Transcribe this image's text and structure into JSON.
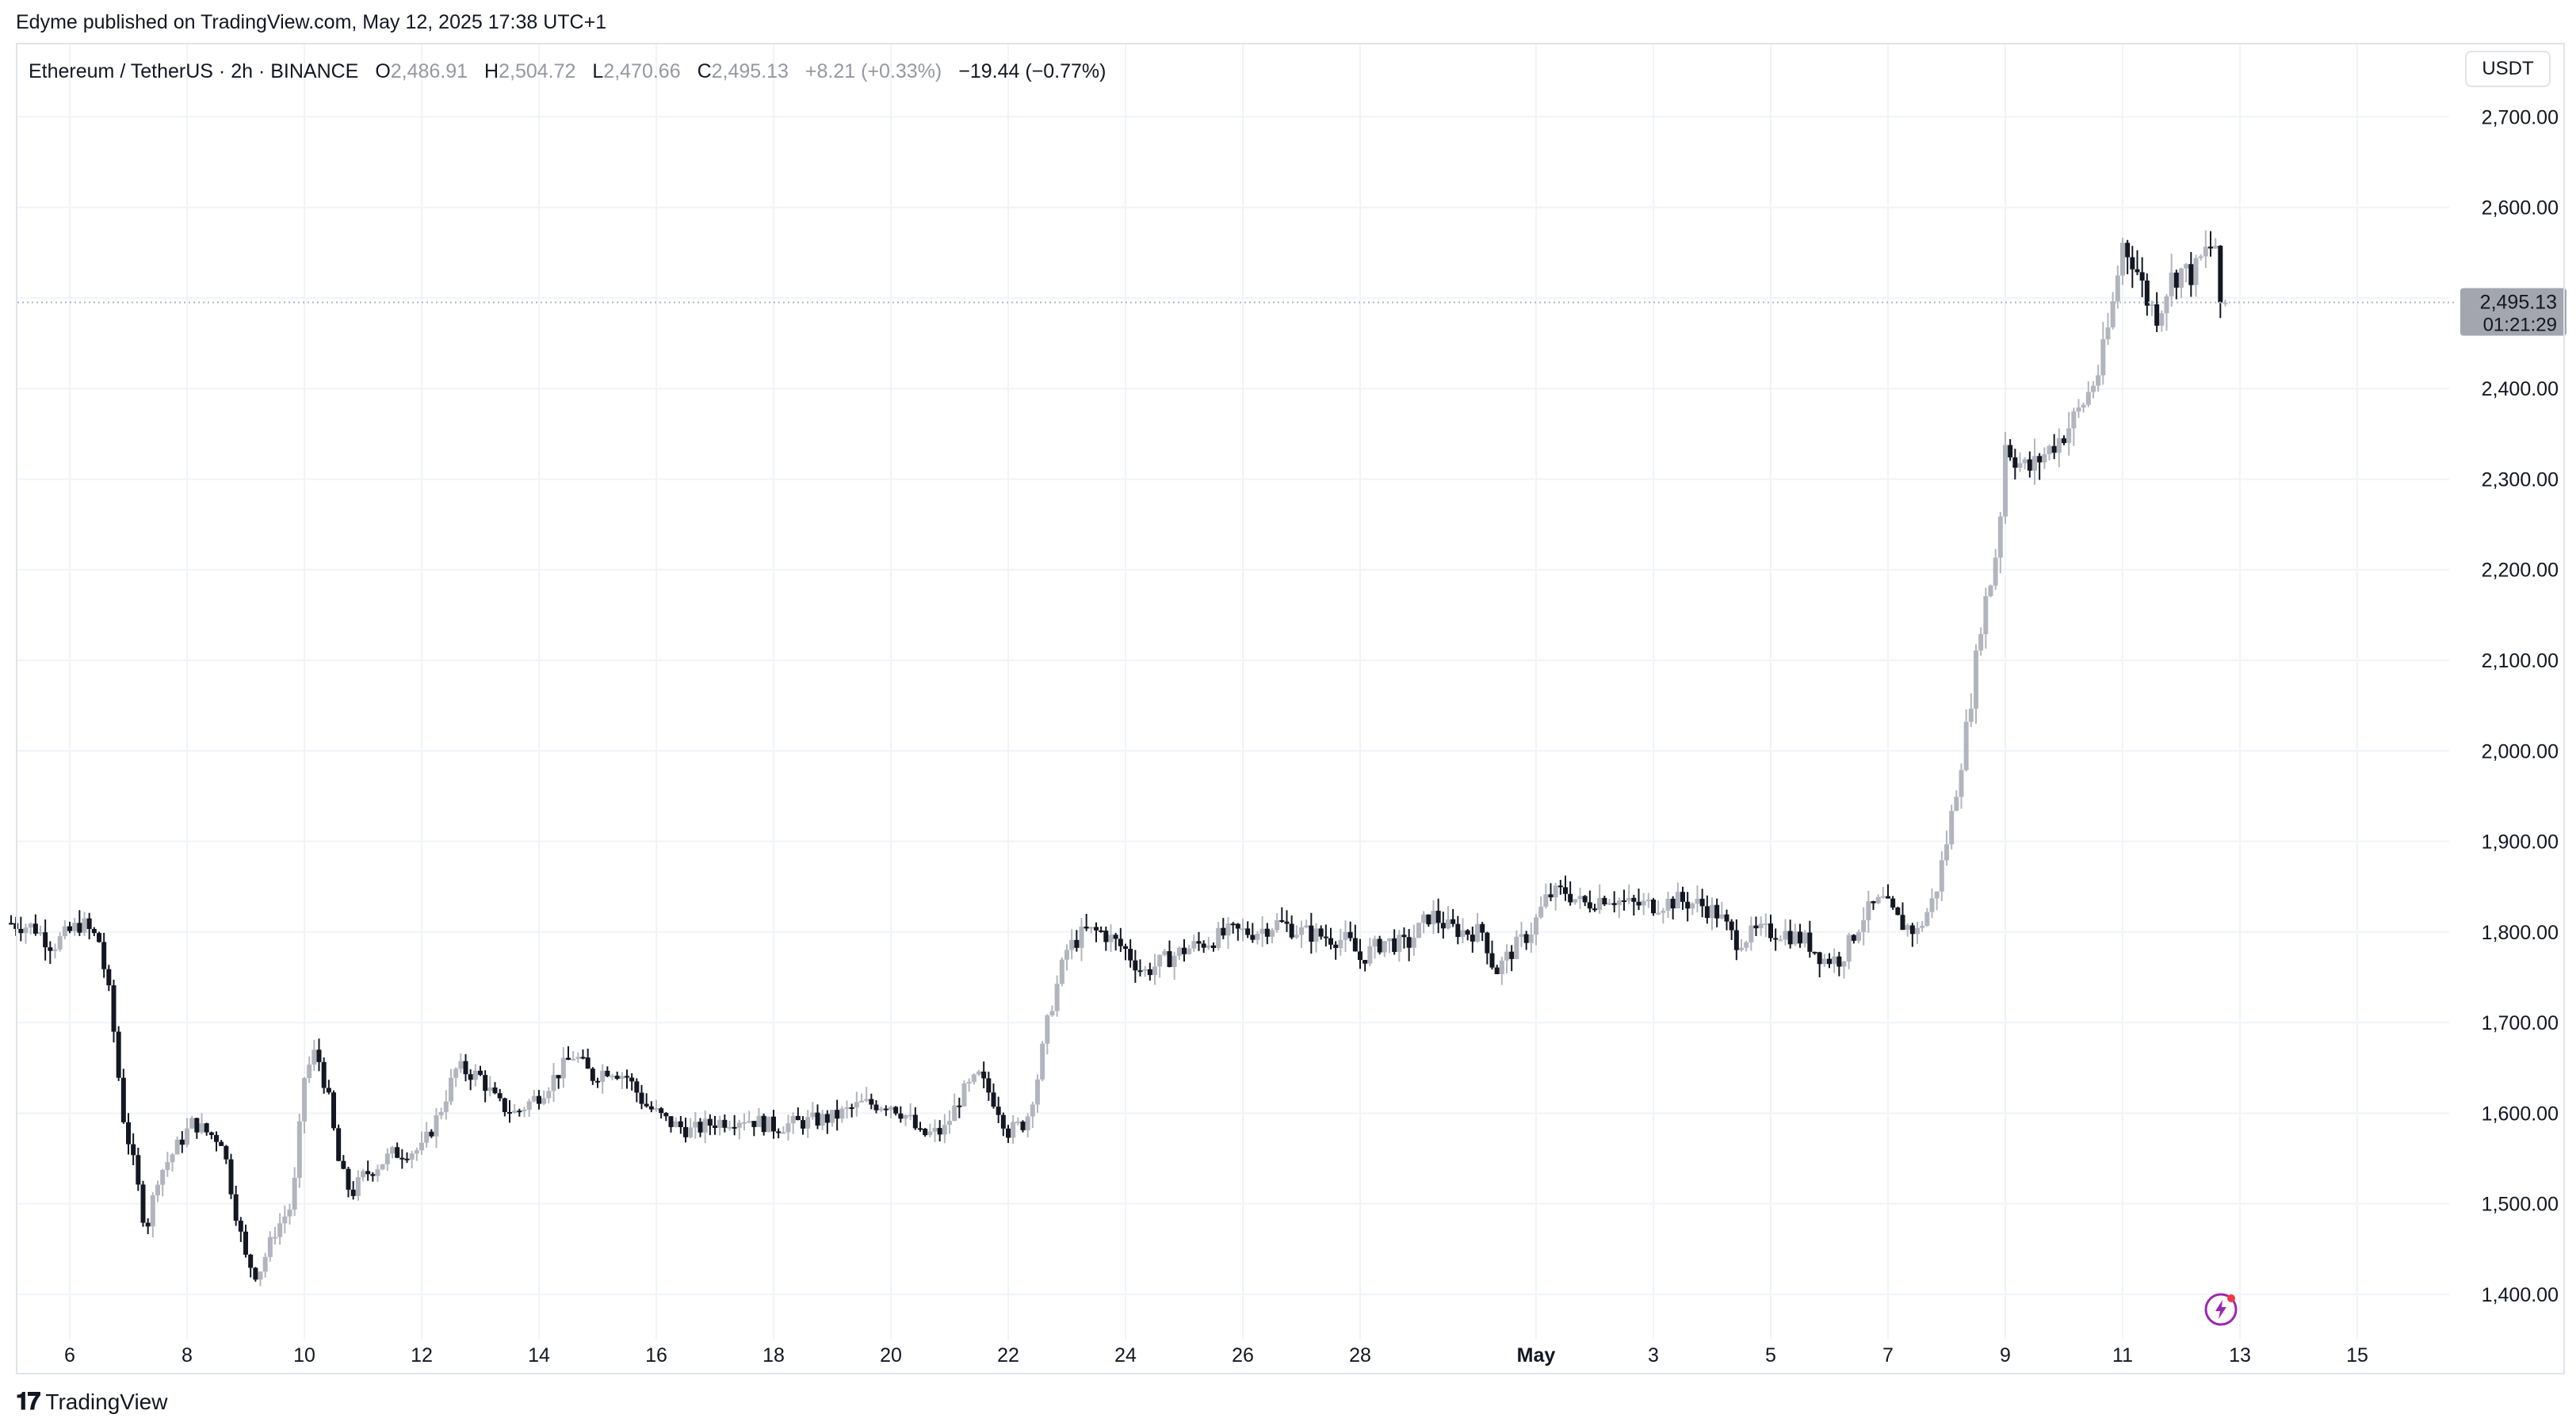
{
  "publication": "Edyme published on TradingView.com, May 12, 2025 17:38 UTC+1",
  "legend": {
    "symbol": "Ethereum / TetherUS · 2h · BINANCE",
    "o_label": "O",
    "o_value": "2,486.91",
    "h_label": "H",
    "h_value": "2,504.72",
    "l_label": "L",
    "l_value": "2,470.66",
    "c_label": "C",
    "c_value": "2,495.13",
    "change": "+8.21 (+0.33%)",
    "change2": "−19.44 (−0.77%)"
  },
  "unit": "USDT",
  "price_tag": {
    "price": "2,495.13",
    "countdown": "01:21:29"
  },
  "footer": {
    "brand": "TradingView"
  },
  "colors": {
    "up": "#b2b5be",
    "down": "#131722",
    "grid": "#f0f3fa",
    "tag": "#a3a6af"
  },
  "chart_data": {
    "type": "candlestick",
    "y_ticks": [
      "1,400.00",
      "1,500.00",
      "1,600.00",
      "1,700.00",
      "1,800.00",
      "1,900.00",
      "2,000.00",
      "2,100.00",
      "2,200.00",
      "2,300.00",
      "2,400.00",
      "2,500.00",
      "2,600.00",
      "2,700.00"
    ],
    "x_ticks": [
      "6",
      "8",
      "10",
      "12",
      "14",
      "16",
      "18",
      "20",
      "22",
      "24",
      "26",
      "28",
      "May",
      "3",
      "5",
      "7",
      "9",
      "11",
      "13",
      "15"
    ],
    "ylim": [
      1350,
      2780
    ],
    "grid": true,
    "last_price": 2495.13,
    "path": [
      [
        5.0,
        1810
      ],
      [
        5.4,
        1805
      ],
      [
        5.7,
        1785
      ],
      [
        6.0,
        1800
      ],
      [
        6.2,
        1810
      ],
      [
        6.5,
        1790
      ],
      [
        6.7,
        1720
      ],
      [
        6.9,
        1600
      ],
      [
        7.1,
        1540
      ],
      [
        7.3,
        1470
      ],
      [
        7.5,
        1530
      ],
      [
        7.8,
        1560
      ],
      [
        8.1,
        1590
      ],
      [
        8.3,
        1580
      ],
      [
        8.6,
        1570
      ],
      [
        8.8,
        1500
      ],
      [
        9.0,
        1440
      ],
      [
        9.2,
        1420
      ],
      [
        9.5,
        1470
      ],
      [
        9.8,
        1500
      ],
      [
        10.0,
        1640
      ],
      [
        10.2,
        1670
      ],
      [
        10.4,
        1620
      ],
      [
        10.6,
        1540
      ],
      [
        10.8,
        1510
      ],
      [
        11.0,
        1530
      ],
      [
        11.5,
        1555
      ],
      [
        12.0,
        1560
      ],
      [
        12.3,
        1600
      ],
      [
        12.6,
        1650
      ],
      [
        13.0,
        1640
      ],
      [
        13.3,
        1610
      ],
      [
        13.6,
        1600
      ],
      [
        14.0,
        1620
      ],
      [
        14.4,
        1650
      ],
      [
        14.6,
        1665
      ],
      [
        14.9,
        1640
      ],
      [
        15.2,
        1650
      ],
      [
        15.5,
        1640
      ],
      [
        15.8,
        1610
      ],
      [
        16.2,
        1590
      ],
      [
        16.6,
        1580
      ],
      [
        17.0,
        1590
      ],
      [
        17.5,
        1595
      ],
      [
        18.0,
        1585
      ],
      [
        18.5,
        1590
      ],
      [
        19.0,
        1595
      ],
      [
        19.5,
        1610
      ],
      [
        20.0,
        1610
      ],
      [
        20.3,
        1595
      ],
      [
        20.5,
        1575
      ],
      [
        20.9,
        1580
      ],
      [
        21.2,
        1620
      ],
      [
        21.5,
        1640
      ],
      [
        21.8,
        1610
      ],
      [
        22.0,
        1580
      ],
      [
        22.3,
        1590
      ],
      [
        22.5,
        1640
      ],
      [
        22.7,
        1710
      ],
      [
        23.0,
        1780
      ],
      [
        23.3,
        1800
      ],
      [
        23.6,
        1800
      ],
      [
        24.0,
        1780
      ],
      [
        24.3,
        1755
      ],
      [
        24.7,
        1770
      ],
      [
        25.0,
        1780
      ],
      [
        25.4,
        1790
      ],
      [
        25.8,
        1800
      ],
      [
        26.2,
        1800
      ],
      [
        26.6,
        1810
      ],
      [
        27.0,
        1800
      ],
      [
        27.4,
        1795
      ],
      [
        27.8,
        1790
      ],
      [
        28.0,
        1770
      ],
      [
        28.4,
        1790
      ],
      [
        28.8,
        1785
      ],
      [
        29.2,
        1820
      ],
      [
        29.5,
        1805
      ],
      [
        29.8,
        1800
      ],
      [
        30.1,
        1800
      ],
      [
        30.3,
        1755
      ],
      [
        30.6,
        1780
      ],
      [
        30.9,
        1800
      ],
      [
        31.2,
        1840
      ],
      [
        31.5,
        1845
      ],
      [
        31.8,
        1830
      ],
      [
        32.2,
        1840
      ],
      [
        32.6,
        1830
      ],
      [
        33.0,
        1830
      ],
      [
        33.4,
        1835
      ],
      [
        33.8,
        1830
      ],
      [
        34.1,
        1820
      ],
      [
        34.4,
        1790
      ],
      [
        34.8,
        1800
      ],
      [
        35.2,
        1800
      ],
      [
        35.6,
        1790
      ],
      [
        35.9,
        1770
      ],
      [
        36.2,
        1770
      ],
      [
        36.6,
        1820
      ],
      [
        36.9,
        1835
      ],
      [
        37.2,
        1810
      ],
      [
        37.5,
        1800
      ],
      [
        37.8,
        1840
      ],
      [
        38.0,
        1900
      ],
      [
        38.2,
        1970
      ],
      [
        38.4,
        2050
      ],
      [
        38.6,
        2150
      ],
      [
        38.8,
        2200
      ],
      [
        38.9,
        2250
      ],
      [
        39.0,
        2340
      ],
      [
        39.2,
        2320
      ],
      [
        39.4,
        2310
      ],
      [
        39.7,
        2330
      ],
      [
        40.0,
        2350
      ],
      [
        40.3,
        2380
      ],
      [
        40.6,
        2420
      ],
      [
        40.8,
        2480
      ],
      [
        41.0,
        2560
      ],
      [
        41.2,
        2540
      ],
      [
        41.4,
        2500
      ],
      [
        41.6,
        2480
      ],
      [
        41.8,
        2520
      ],
      [
        42.0,
        2530
      ],
      [
        42.2,
        2525
      ],
      [
        42.4,
        2550
      ],
      [
        42.6,
        2560
      ],
      [
        42.75,
        2495.13
      ]
    ]
  }
}
